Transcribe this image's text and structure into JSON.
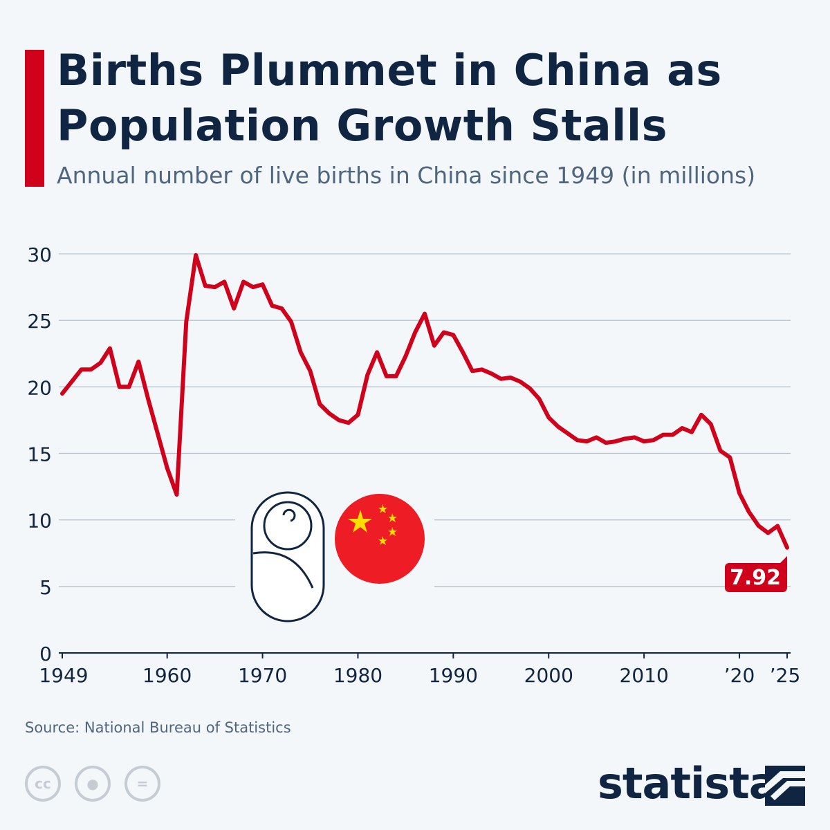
{
  "header": {
    "title": "Births Plummet in China as Population Growth Stalls",
    "subtitle": "Annual number of live births in China since 1949 (in millions)"
  },
  "footer": {
    "source": "Source: National Bureau of Statistics",
    "license_icons": [
      "cc-icon",
      "attribution-icon",
      "no-derivatives-icon"
    ],
    "logo": "statista"
  },
  "colors": {
    "line": "#d0021b",
    "title": "#0f2541",
    "grid": "#b8c2cd",
    "background": "#f4f7fa"
  },
  "chart_data": {
    "type": "line",
    "title": "Births Plummet in China as Population Growth Stalls",
    "subtitle": "Annual number of live births in China since 1949 (in millions)",
    "ylim": [
      0,
      30
    ],
    "xlim": [
      1949,
      2025
    ],
    "grid": true,
    "yticks": [
      0,
      5,
      10,
      15,
      20,
      25,
      30
    ],
    "xticks": [
      {
        "year": 1949,
        "label": "1949"
      },
      {
        "year": 1960,
        "label": "1960"
      },
      {
        "year": 1970,
        "label": "1970"
      },
      {
        "year": 1980,
        "label": "1980"
      },
      {
        "year": 1990,
        "label": "1990"
      },
      {
        "year": 2000,
        "label": "2000"
      },
      {
        "year": 2010,
        "label": "2010"
      },
      {
        "year": 2020,
        "label": "’20"
      },
      {
        "year": 2025,
        "label": "’25"
      }
    ],
    "annotation": {
      "year": 2025,
      "label": "7.92"
    },
    "x": [
      1949,
      1950,
      1951,
      1952,
      1953,
      1954,
      1955,
      1956,
      1957,
      1958,
      1959,
      1960,
      1961,
      1962,
      1963,
      1964,
      1965,
      1966,
      1967,
      1968,
      1969,
      1970,
      1971,
      1972,
      1973,
      1974,
      1975,
      1976,
      1977,
      1978,
      1979,
      1980,
      1981,
      1982,
      1983,
      1984,
      1985,
      1986,
      1987,
      1988,
      1989,
      1990,
      1991,
      1992,
      1993,
      1994,
      1995,
      1996,
      1997,
      1998,
      1999,
      2000,
      2001,
      2002,
      2003,
      2004,
      2005,
      2006,
      2007,
      2008,
      2009,
      2010,
      2011,
      2012,
      2013,
      2014,
      2015,
      2016,
      2017,
      2018,
      2019,
      2020,
      2021,
      2022,
      2023,
      2024,
      2025
    ],
    "values": [
      19.5,
      20.4,
      21.3,
      21.3,
      21.8,
      22.9,
      20.0,
      20.0,
      21.9,
      19.1,
      16.5,
      13.9,
      11.9,
      24.9,
      29.9,
      27.6,
      27.5,
      27.9,
      25.9,
      27.9,
      27.5,
      27.7,
      26.1,
      25.9,
      24.9,
      22.6,
      21.2,
      18.7,
      18.0,
      17.5,
      17.3,
      17.9,
      20.9,
      22.6,
      20.8,
      20.8,
      22.3,
      24.1,
      25.5,
      23.1,
      24.1,
      23.9,
      22.6,
      21.2,
      21.3,
      21.0,
      20.6,
      20.7,
      20.4,
      19.9,
      19.1,
      17.7,
      17.0,
      16.5,
      16.0,
      15.9,
      16.2,
      15.8,
      15.9,
      16.1,
      16.2,
      15.9,
      16.0,
      16.4,
      16.4,
      16.9,
      16.6,
      17.9,
      17.2,
      15.2,
      14.7,
      12.0,
      10.6,
      9.56,
      9.02,
      9.54,
      7.92
    ]
  }
}
